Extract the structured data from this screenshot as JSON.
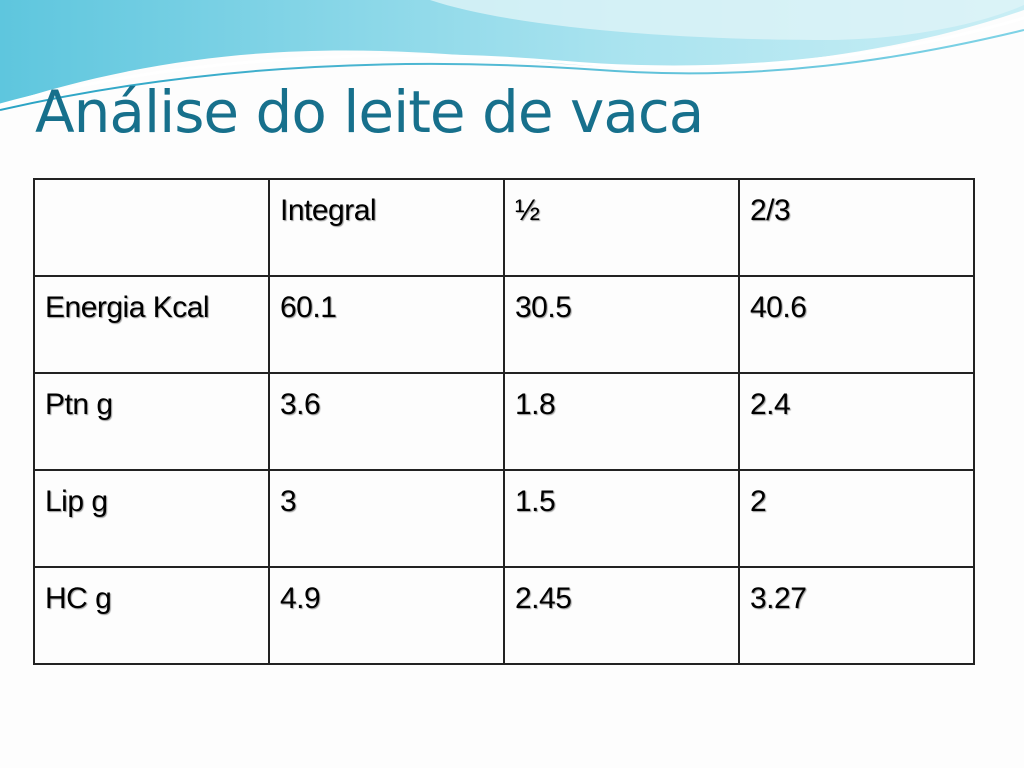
{
  "title": "Análise do leite de vaca",
  "table": {
    "columns": [
      "Integral",
      "½",
      "2/3"
    ],
    "rows": [
      {
        "label": "Energia Kcal",
        "cells": [
          "60.1",
          "30.5",
          "40.6"
        ]
      },
      {
        "label": "Ptn g",
        "cells": [
          "3.6",
          "1.8",
          "2.4"
        ]
      },
      {
        "label": "Lip g",
        "cells": [
          "3",
          "1.5",
          "2"
        ]
      },
      {
        "label": "HC g",
        "cells": [
          "4.9",
          "2.45",
          "3.27"
        ]
      }
    ]
  }
}
